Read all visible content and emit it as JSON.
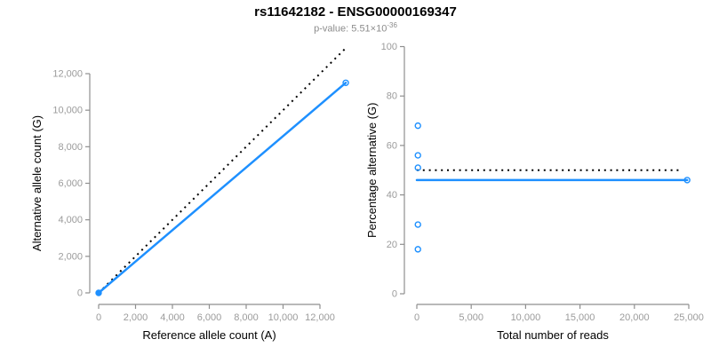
{
  "header": {
    "title": "rs11642182 - ENSG00000169347",
    "subtitle_main": "p-value: 5.51×10",
    "subtitle_exp": "-36"
  },
  "colors": {
    "accent_blue": "#1E90FF",
    "axis_gray": "#8f8f8f",
    "tick_label_gray": "#9b9b9b",
    "dotted_black": "#000000",
    "label_black": "#000000",
    "subtitle_gray": "#8c8c8c"
  },
  "chart_data": [
    {
      "type": "line",
      "name": "allele-count-panel",
      "xlabel": "Reference allele count (A)",
      "ylabel": "Alternative allele count (G)",
      "xlim": [
        0,
        13600
      ],
      "ylim": [
        0,
        13600
      ],
      "xticks": [
        0,
        2000,
        4000,
        6000,
        8000,
        10000,
        12000
      ],
      "xtick_labels": [
        "0",
        "2,000",
        "4,000",
        "6,000",
        "8,000",
        "10,000",
        "12,000"
      ],
      "yticks": [
        0,
        2000,
        4000,
        6000,
        8000,
        10000,
        12000
      ],
      "ytick_labels": [
        "0",
        "2,000",
        "4,000",
        "6,000",
        "8,000",
        "10,000",
        "12,000"
      ],
      "grid": false,
      "legend": "none",
      "series": [
        {
          "name": "identity-line",
          "style": "dotted",
          "color": "#000000",
          "points": [
            [
              0,
              0
            ],
            [
              13400,
              13400
            ]
          ]
        },
        {
          "name": "fit-line",
          "style": "solid",
          "color": "#1E90FF",
          "points": [
            [
              0,
              0
            ],
            [
              13400,
              11500
            ]
          ]
        }
      ],
      "markers": [
        {
          "x": 0,
          "y": 0,
          "filled": true
        },
        {
          "x": 13400,
          "y": 11500,
          "filled": false
        }
      ]
    },
    {
      "type": "scatter+line",
      "name": "percentage-panel",
      "xlabel": "Total number of reads",
      "ylabel": "Percentage alternative (G)",
      "xlim": [
        0,
        26000
      ],
      "ylim": [
        0,
        100
      ],
      "xticks": [
        0,
        5000,
        10000,
        15000,
        20000,
        25000
      ],
      "xtick_labels": [
        "0",
        "5,000",
        "10,000",
        "15,000",
        "20,000",
        "25,000"
      ],
      "yticks": [
        0,
        20,
        40,
        60,
        80,
        100
      ],
      "ytick_labels": [
        "0",
        "20",
        "40",
        "60",
        "80",
        "100"
      ],
      "grid": false,
      "legend": "none",
      "series": [
        {
          "name": "expected-50-line",
          "style": "dotted",
          "color": "#000000",
          "points": [
            [
              0,
              50
            ],
            [
              24400,
              50
            ]
          ]
        },
        {
          "name": "fit-line",
          "style": "solid",
          "color": "#1E90FF",
          "points": [
            [
              0,
              46
            ],
            [
              24850,
              46
            ]
          ]
        }
      ],
      "markers": [
        {
          "x": 100,
          "y": 68,
          "filled": false
        },
        {
          "x": 100,
          "y": 56,
          "filled": false
        },
        {
          "x": 100,
          "y": 51,
          "filled": false
        },
        {
          "x": 100,
          "y": 28,
          "filled": false
        },
        {
          "x": 100,
          "y": 18,
          "filled": false
        },
        {
          "x": 24850,
          "y": 46,
          "filled": false
        }
      ]
    }
  ]
}
